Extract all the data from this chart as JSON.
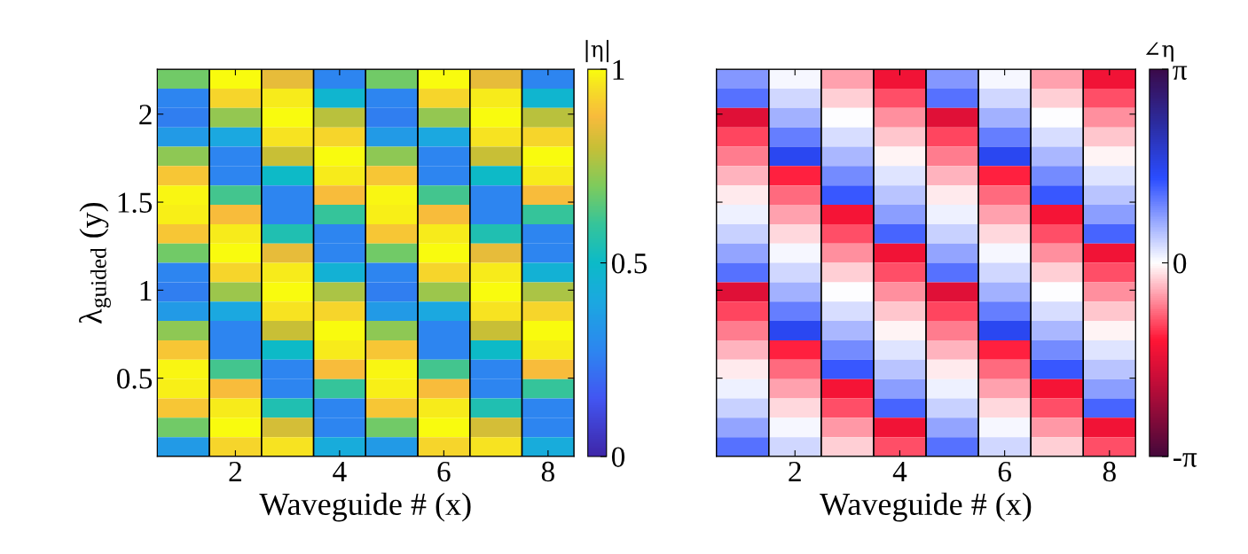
{
  "chart_data": [
    {
      "type": "heatmap",
      "xlabel": "Waveguide # (x)",
      "ylabel": "λ$_{guided}$ (y)",
      "clabel": "|η|",
      "x": [
        1,
        2,
        3,
        4,
        5,
        6,
        7,
        8
      ],
      "xlim": [
        0.5,
        8.5
      ],
      "xticks": [
        2,
        4,
        6,
        8
      ],
      "ylim": [
        0.055,
        2.255
      ],
      "yticks": [
        0.5,
        1,
        1.5,
        2
      ],
      "clim": [
        0,
        1
      ],
      "cticks": [
        0,
        0.5,
        1
      ],
      "cells": [
        [
          0.68,
          1.0,
          0.85,
          0.27,
          0.68,
          1.0,
          0.85,
          0.27
        ],
        [
          0.27,
          0.93,
          0.97,
          0.47,
          0.27,
          0.93,
          0.97,
          0.47
        ],
        [
          0.25,
          0.73,
          1.0,
          0.78,
          0.25,
          0.73,
          1.0,
          0.78
        ],
        [
          0.35,
          0.4,
          0.96,
          0.93,
          0.35,
          0.4,
          0.96,
          0.93
        ],
        [
          0.72,
          0.27,
          0.8,
          1.0,
          0.72,
          0.27,
          0.8,
          1.0
        ],
        [
          0.9,
          0.27,
          0.5,
          0.97,
          0.9,
          0.27,
          0.5,
          0.97
        ],
        [
          0.99,
          0.62,
          0.27,
          0.88,
          0.99,
          0.62,
          0.27,
          0.88
        ],
        [
          0.98,
          0.88,
          0.27,
          0.6,
          0.98,
          0.88,
          0.27,
          0.6
        ],
        [
          0.9,
          0.97,
          0.55,
          0.27,
          0.9,
          0.97,
          0.55,
          0.27
        ],
        [
          0.68,
          1.0,
          0.85,
          0.27,
          0.68,
          1.0,
          0.85,
          0.27
        ],
        [
          0.27,
          0.93,
          0.97,
          0.45,
          0.27,
          0.93,
          0.97,
          0.45
        ],
        [
          0.25,
          0.74,
          1.0,
          0.76,
          0.25,
          0.74,
          1.0,
          0.76
        ],
        [
          0.35,
          0.4,
          0.96,
          0.93,
          0.35,
          0.4,
          0.96,
          0.93
        ],
        [
          0.72,
          0.27,
          0.8,
          1.0,
          0.72,
          0.27,
          0.8,
          1.0
        ],
        [
          0.9,
          0.27,
          0.5,
          0.97,
          0.9,
          0.27,
          0.5,
          0.97
        ],
        [
          0.99,
          0.62,
          0.27,
          0.88,
          0.99,
          0.62,
          0.27,
          0.88
        ],
        [
          0.98,
          0.88,
          0.27,
          0.6,
          0.98,
          0.88,
          0.27,
          0.6
        ],
        [
          0.9,
          0.97,
          0.55,
          0.27,
          0.9,
          0.97,
          0.55,
          0.27
        ],
        [
          0.68,
          1.0,
          0.82,
          0.27,
          0.68,
          1.0,
          0.82,
          0.27
        ],
        [
          0.35,
          0.93,
          0.96,
          0.42,
          0.35,
          0.93,
          0.96,
          0.42
        ]
      ]
    },
    {
      "type": "heatmap",
      "xlabel": "Waveguide # (x)",
      "clabel": "∠η",
      "tick_labels": "x",
      "x": [
        1,
        2,
        3,
        4,
        5,
        6,
        7,
        8
      ],
      "xlim": [
        0.5,
        8.5
      ],
      "xticks": [
        2,
        4,
        6,
        8
      ],
      "ylim": [
        0.055,
        2.255
      ],
      "yticks": [
        0.5,
        1,
        1.5,
        2
      ],
      "clim": [
        -3.1416,
        3.1416
      ],
      "cticks": [
        {
          "value": -3.1416,
          "label": "-π"
        },
        {
          "value": 0,
          "label": "0"
        },
        {
          "value": 3.1416,
          "label": "π"
        }
      ],
      "cells": [
        [
          0.8,
          0.05,
          -0.5,
          -1.4,
          0.8,
          0.05,
          -0.5,
          -1.4
        ],
        [
          1.1,
          0.3,
          -0.25,
          -0.95,
          1.1,
          0.3,
          -0.25,
          -0.95
        ],
        [
          -1.6,
          0.6,
          0.0,
          -0.6,
          -1.6,
          0.6,
          0.0,
          -0.6
        ],
        [
          -1.0,
          1.0,
          0.25,
          -0.3,
          -1.0,
          1.0,
          0.25,
          -0.3
        ],
        [
          -0.7,
          1.5,
          0.55,
          -0.05,
          -0.7,
          1.5,
          0.55,
          -0.05
        ],
        [
          -0.4,
          -1.2,
          0.9,
          0.2,
          -0.4,
          -1.2,
          0.9,
          0.2
        ],
        [
          -0.1,
          -0.8,
          1.3,
          0.45,
          -0.1,
          -0.8,
          1.3,
          0.45
        ],
        [
          0.1,
          -0.5,
          -1.35,
          0.75,
          0.1,
          -0.5,
          -1.35,
          0.75
        ],
        [
          0.35,
          -0.2,
          -0.95,
          1.2,
          0.35,
          -0.2,
          -0.95,
          1.2
        ],
        [
          0.7,
          0.05,
          -0.6,
          -1.4,
          0.7,
          0.05,
          -0.6,
          -1.4
        ],
        [
          1.1,
          0.3,
          -0.25,
          -0.95,
          1.1,
          0.3,
          -0.25,
          -0.95
        ],
        [
          -1.6,
          0.6,
          0.0,
          -0.6,
          -1.6,
          0.6,
          0.0,
          -0.6
        ],
        [
          -1.0,
          1.0,
          0.25,
          -0.3,
          -1.0,
          1.0,
          0.25,
          -0.3
        ],
        [
          -0.7,
          1.5,
          0.55,
          -0.05,
          -0.7,
          1.5,
          0.55,
          -0.05
        ],
        [
          -0.4,
          -1.2,
          0.9,
          0.2,
          -0.4,
          -1.2,
          0.9,
          0.2
        ],
        [
          -0.1,
          -0.8,
          1.3,
          0.45,
          -0.1,
          -0.8,
          1.3,
          0.45
        ],
        [
          0.1,
          -0.5,
          -1.35,
          0.75,
          0.1,
          -0.5,
          -1.35,
          0.75
        ],
        [
          0.35,
          -0.2,
          -0.95,
          1.2,
          0.35,
          -0.2,
          -0.95,
          1.2
        ],
        [
          0.7,
          0.05,
          -0.55,
          -1.4,
          0.7,
          0.05,
          -0.55,
          -1.4
        ],
        [
          1.1,
          0.3,
          -0.25,
          -0.95,
          1.1,
          0.3,
          -0.25,
          -0.95
        ]
      ]
    }
  ]
}
